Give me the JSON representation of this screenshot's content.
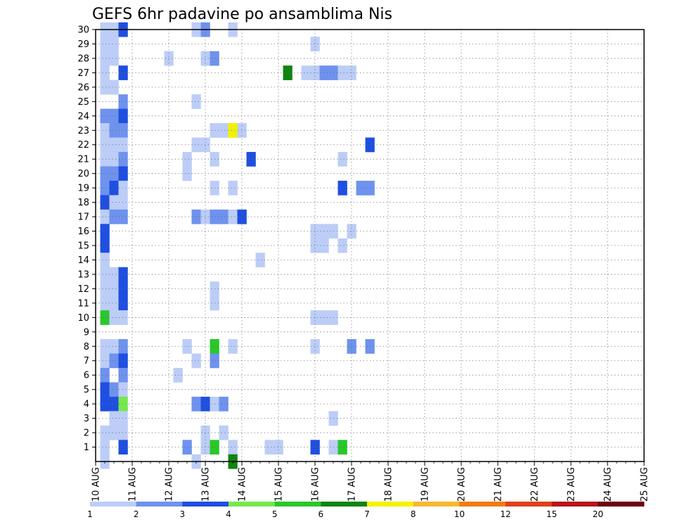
{
  "chart_data": {
    "type": "heatmap",
    "title": "GEFS 6hr padavine po ansamblima Nis",
    "xlabel": "",
    "ylabel": "",
    "x_ticks": [
      "10 AUG",
      "11 AUG",
      "12 AUG",
      "13 AUG",
      "14 AUG",
      "15 AUG",
      "16 AUG",
      "17 AUG",
      "18 AUG",
      "19 AUG",
      "20 AUG",
      "21 AUG",
      "22 AUG",
      "23 AUG",
      "24 AUG",
      "25 AUG"
    ],
    "y_ticks": [
      "1",
      "2",
      "3",
      "4",
      "5",
      "6",
      "7",
      "8",
      "9",
      "10",
      "11",
      "12",
      "13",
      "14",
      "15",
      "16",
      "17",
      "18",
      "19",
      "20",
      "21",
      "22",
      "23",
      "24",
      "25",
      "26",
      "27",
      "28",
      "29",
      "30"
    ],
    "xlim_days": [
      0,
      15
    ],
    "ylim": [
      0,
      30
    ],
    "step_hours": 6,
    "grid": true,
    "legend": "bottom",
    "colorbar": {
      "boundaries": [
        "1",
        "2",
        "3",
        "4",
        "5",
        "6",
        "7",
        "8",
        "10",
        "12",
        "15",
        "20"
      ],
      "colors": [
        "#bccdf7",
        "#6e92ee",
        "#1f4fe0",
        "#77e84c",
        "#2ac72a",
        "#108410",
        "#f2f200",
        "#f8b830",
        "#f27a10",
        "#e0401a",
        "#b8141a",
        "#6d0010"
      ]
    },
    "cells": [
      [
        30,
        1,
        1
      ],
      [
        30,
        2,
        1
      ],
      [
        30,
        3,
        3
      ],
      [
        30,
        11,
        1
      ],
      [
        30,
        12,
        2
      ],
      [
        30,
        15,
        1
      ],
      [
        29,
        1,
        1
      ],
      [
        29,
        2,
        1
      ],
      [
        29,
        24,
        1
      ],
      [
        28,
        1,
        1
      ],
      [
        28,
        2,
        1
      ],
      [
        28,
        8,
        1
      ],
      [
        28,
        12,
        1
      ],
      [
        28,
        13,
        2
      ],
      [
        27,
        1,
        1
      ],
      [
        27,
        3,
        3
      ],
      [
        27,
        21,
        6
      ],
      [
        27,
        23,
        1
      ],
      [
        27,
        24,
        1
      ],
      [
        27,
        25,
        2
      ],
      [
        27,
        26,
        2
      ],
      [
        27,
        27,
        1
      ],
      [
        27,
        28,
        1
      ],
      [
        26,
        1,
        1
      ],
      [
        26,
        2,
        1
      ],
      [
        25,
        3,
        2
      ],
      [
        25,
        11,
        1
      ],
      [
        24,
        1,
        2
      ],
      [
        24,
        2,
        2
      ],
      [
        24,
        3,
        3
      ],
      [
        23,
        1,
        1
      ],
      [
        23,
        2,
        2
      ],
      [
        23,
        3,
        2
      ],
      [
        23,
        13,
        1
      ],
      [
        23,
        14,
        1
      ],
      [
        23,
        15,
        7
      ],
      [
        23,
        16,
        1
      ],
      [
        22,
        1,
        1
      ],
      [
        22,
        2,
        1
      ],
      [
        22,
        3,
        1
      ],
      [
        22,
        11,
        1
      ],
      [
        22,
        12,
        1
      ],
      [
        22,
        30,
        3
      ],
      [
        21,
        1,
        1
      ],
      [
        21,
        2,
        1
      ],
      [
        21,
        3,
        2
      ],
      [
        21,
        10,
        1
      ],
      [
        21,
        13,
        1
      ],
      [
        21,
        17,
        3
      ],
      [
        21,
        27,
        1
      ],
      [
        20,
        1,
        2
      ],
      [
        20,
        2,
        2
      ],
      [
        20,
        3,
        3
      ],
      [
        20,
        10,
        1
      ],
      [
        19,
        1,
        2
      ],
      [
        19,
        2,
        3
      ],
      [
        19,
        3,
        1
      ],
      [
        19,
        13,
        1
      ],
      [
        19,
        15,
        1
      ],
      [
        19,
        27,
        3
      ],
      [
        19,
        29,
        2
      ],
      [
        19,
        30,
        2
      ],
      [
        18,
        1,
        3
      ],
      [
        18,
        2,
        1
      ],
      [
        18,
        3,
        1
      ],
      [
        17,
        1,
        1
      ],
      [
        17,
        2,
        2
      ],
      [
        17,
        3,
        2
      ],
      [
        17,
        11,
        2
      ],
      [
        17,
        12,
        1
      ],
      [
        17,
        13,
        2
      ],
      [
        17,
        14,
        2
      ],
      [
        17,
        15,
        1
      ],
      [
        17,
        16,
        3
      ],
      [
        16,
        1,
        3
      ],
      [
        16,
        24,
        1
      ],
      [
        16,
        25,
        1
      ],
      [
        16,
        26,
        1
      ],
      [
        16,
        28,
        1
      ],
      [
        15,
        1,
        3
      ],
      [
        15,
        24,
        1
      ],
      [
        15,
        25,
        1
      ],
      [
        15,
        27,
        1
      ],
      [
        14,
        1,
        1
      ],
      [
        14,
        18,
        1
      ],
      [
        13,
        1,
        1
      ],
      [
        13,
        2,
        1
      ],
      [
        13,
        3,
        3
      ],
      [
        12,
        1,
        1
      ],
      [
        12,
        2,
        1
      ],
      [
        12,
        3,
        3
      ],
      [
        12,
        13,
        1
      ],
      [
        11,
        1,
        1
      ],
      [
        11,
        2,
        1
      ],
      [
        11,
        3,
        3
      ],
      [
        11,
        13,
        1
      ],
      [
        10,
        1,
        5
      ],
      [
        10,
        2,
        1
      ],
      [
        10,
        3,
        1
      ],
      [
        10,
        24,
        1
      ],
      [
        10,
        25,
        1
      ],
      [
        10,
        26,
        1
      ],
      [
        8,
        1,
        1
      ],
      [
        8,
        2,
        1
      ],
      [
        8,
        3,
        2
      ],
      [
        8,
        10,
        1
      ],
      [
        8,
        13,
        5
      ],
      [
        8,
        15,
        1
      ],
      [
        8,
        24,
        1
      ],
      [
        8,
        28,
        2
      ],
      [
        8,
        30,
        2
      ],
      [
        7,
        1,
        1
      ],
      [
        7,
        2,
        2
      ],
      [
        7,
        3,
        3
      ],
      [
        7,
        11,
        1
      ],
      [
        7,
        13,
        2
      ],
      [
        6,
        1,
        2
      ],
      [
        6,
        3,
        2
      ],
      [
        6,
        9,
        1
      ],
      [
        5,
        1,
        3
      ],
      [
        5,
        2,
        2
      ],
      [
        5,
        3,
        1
      ],
      [
        4,
        1,
        3
      ],
      [
        4,
        2,
        3
      ],
      [
        4,
        3,
        4
      ],
      [
        4,
        11,
        2
      ],
      [
        4,
        12,
        3
      ],
      [
        4,
        13,
        1
      ],
      [
        4,
        14,
        2
      ],
      [
        3,
        2,
        1
      ],
      [
        3,
        3,
        1
      ],
      [
        3,
        26,
        1
      ],
      [
        2,
        1,
        1
      ],
      [
        2,
        2,
        1
      ],
      [
        2,
        3,
        1
      ],
      [
        2,
        12,
        1
      ],
      [
        2,
        14,
        1
      ],
      [
        1,
        1,
        1
      ],
      [
        1,
        3,
        3
      ],
      [
        1,
        10,
        2
      ],
      [
        1,
        12,
        1
      ],
      [
        1,
        13,
        5
      ],
      [
        1,
        15,
        1
      ],
      [
        1,
        19,
        1
      ],
      [
        1,
        20,
        1
      ],
      [
        1,
        24,
        3
      ],
      [
        1,
        26,
        1
      ],
      [
        1,
        27,
        5
      ],
      [
        0,
        1,
        1
      ],
      [
        0,
        11,
        1
      ],
      [
        0,
        15,
        6
      ]
    ]
  }
}
